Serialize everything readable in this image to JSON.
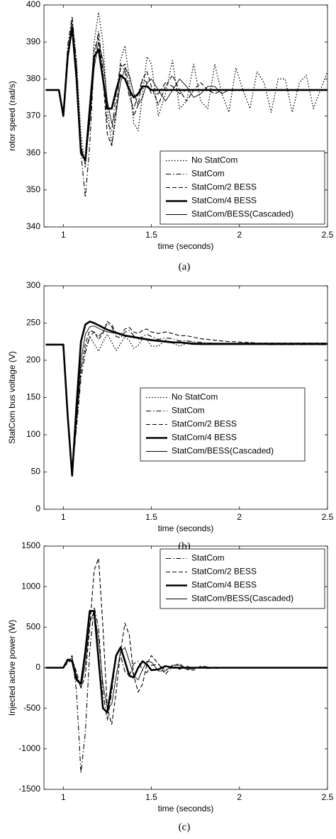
{
  "chart_data": [
    {
      "type": "line",
      "ylabel": "rotor speed (rad/s)",
      "xlabel": "time (seconds)",
      "caption": "(a)",
      "legend": "lower right",
      "xlim": [
        0.89,
        2.5
      ],
      "xticks": [
        1,
        1.5,
        2,
        2.5
      ],
      "ylim": [
        340,
        400
      ],
      "yticks": [
        340,
        350,
        360,
        370,
        380,
        390,
        400
      ],
      "x": [
        0.9,
        0.925,
        0.95,
        0.975,
        1,
        1.025,
        1.05,
        1.075,
        1.1,
        1.125,
        1.15,
        1.175,
        1.2,
        1.225,
        1.25,
        1.275,
        1.3,
        1.325,
        1.35,
        1.375,
        1.4,
        1.425,
        1.45,
        1.475,
        1.5,
        1.54,
        1.58,
        1.62,
        1.66,
        1.7,
        1.74,
        1.78,
        1.82,
        1.86,
        1.9,
        1.94,
        1.98,
        2.02,
        2.06,
        2.1,
        2.14,
        2.18,
        2.22,
        2.26,
        2.3,
        2.34,
        2.38,
        2.42,
        2.46,
        2.5
      ],
      "series": [
        {
          "name": "No StatCom",
          "color": "#000000",
          "dash": "dotted",
          "width": 1.3,
          "values": [
            377,
            377,
            377,
            377,
            371,
            388,
            396,
            385,
            365,
            356,
            370,
            390,
            398,
            390,
            372,
            362,
            370,
            385,
            389,
            380,
            368,
            366,
            376,
            386,
            384,
            370,
            376,
            385,
            372,
            374,
            384,
            374,
            372,
            384,
            376,
            371,
            383,
            377,
            372,
            382,
            379,
            371,
            380,
            380,
            371,
            379,
            381,
            372,
            377,
            382
          ]
        },
        {
          "name": "StatCom",
          "color": "#000000",
          "dash": "dashdot",
          "width": 1.1,
          "values": [
            377,
            377,
            377,
            377,
            371,
            389,
            397,
            384,
            360,
            348,
            362,
            385,
            393,
            382,
            368,
            366,
            376,
            384,
            382,
            375,
            372,
            376,
            380,
            379,
            376,
            376,
            379,
            378,
            376,
            377,
            377,
            377,
            377,
            377,
            377,
            377,
            377,
            377,
            377,
            377,
            377,
            377,
            377,
            377,
            377,
            377,
            377,
            377,
            377,
            377
          ]
        },
        {
          "name": "StatCom/2 BESS",
          "color": "#000000",
          "dash": "dashed",
          "width": 1.1,
          "values": [
            377,
            377,
            377,
            377,
            371,
            386,
            393,
            383,
            362,
            357,
            372,
            388,
            391,
            380,
            365,
            362,
            372,
            383,
            384,
            377,
            370,
            373,
            380,
            382,
            378,
            373,
            378,
            381,
            377,
            374,
            377,
            379,
            377,
            376,
            377,
            377,
            377,
            377,
            377,
            377,
            377,
            377,
            377,
            377,
            377,
            377,
            377,
            377,
            377,
            377
          ]
        },
        {
          "name": "StatCom/4 BESS",
          "color": "#000000",
          "dash": "solid",
          "width": 2.6,
          "values": [
            377,
            377,
            377,
            377,
            370,
            386,
            394,
            380,
            360,
            358,
            372,
            386,
            388,
            380,
            372,
            372,
            377,
            381,
            380,
            377,
            375,
            376,
            378,
            378,
            377,
            377,
            377,
            377,
            377,
            377,
            377,
            377,
            377,
            377,
            377,
            377,
            377,
            377,
            377,
            377,
            377,
            377,
            377,
            377,
            377,
            377,
            377,
            377,
            377,
            377
          ]
        },
        {
          "name": "StatCom/BESS(Cascaded)",
          "color": "#000000",
          "dash": "solid",
          "width": 0.9,
          "values": [
            377,
            377,
            377,
            377,
            371,
            387,
            395,
            382,
            361,
            358,
            368,
            383,
            390,
            385,
            374,
            368,
            371,
            379,
            383,
            381,
            376,
            373,
            375,
            379,
            380,
            377,
            374,
            377,
            380,
            378,
            375,
            376,
            378,
            378,
            376,
            377,
            377,
            377,
            377,
            377,
            377,
            377,
            377,
            377,
            377,
            377,
            377,
            377,
            377,
            377
          ]
        }
      ]
    },
    {
      "type": "line",
      "ylabel": "StatCom bus voltage (V)",
      "xlabel": "time (seconds)",
      "caption": "(b)",
      "legend": "center right",
      "xlim": [
        0.89,
        2.5
      ],
      "xticks": [
        1,
        1.5,
        2,
        2.5
      ],
      "ylim": [
        0,
        300
      ],
      "yticks": [
        0,
        50,
        100,
        150,
        200,
        250,
        300
      ],
      "x": [
        0.9,
        0.925,
        0.95,
        0.975,
        1,
        1.025,
        1.05,
        1.075,
        1.1,
        1.125,
        1.15,
        1.175,
        1.2,
        1.225,
        1.25,
        1.275,
        1.3,
        1.325,
        1.35,
        1.375,
        1.4,
        1.425,
        1.45,
        1.475,
        1.5,
        1.54,
        1.58,
        1.62,
        1.66,
        1.7,
        1.74,
        1.78,
        1.82,
        1.86,
        1.9,
        1.94,
        1.98,
        2.02,
        2.06,
        2.1,
        2.14,
        2.18,
        2.22,
        2.26,
        2.3,
        2.34,
        2.38,
        2.42,
        2.46,
        2.5
      ],
      "series": [
        {
          "name": "No StatCom",
          "color": "#000000",
          "dash": "dotted",
          "width": 1.3,
          "values": [
            221,
            221,
            221,
            221,
            221,
            130,
            48,
            120,
            190,
            215,
            232,
            222,
            212,
            225,
            235,
            224,
            213,
            222,
            232,
            226,
            216,
            220,
            229,
            228,
            219,
            219,
            227,
            223,
            219,
            223,
            224,
            221,
            221,
            221,
            221,
            221,
            221,
            221,
            221,
            221,
            221,
            221,
            221,
            221,
            221,
            221,
            221,
            221,
            221,
            221
          ]
        },
        {
          "name": "StatCom",
          "color": "#000000",
          "dash": "dashdot",
          "width": 1.1,
          "values": [
            221,
            221,
            221,
            221,
            221,
            130,
            48,
            110,
            175,
            210,
            232,
            238,
            232,
            238,
            250,
            245,
            232,
            230,
            238,
            240,
            233,
            228,
            232,
            235,
            232,
            228,
            230,
            229,
            226,
            226,
            225,
            224,
            223,
            223,
            222,
            222,
            222,
            222,
            222,
            222,
            221,
            221,
            221,
            221,
            221,
            221,
            221,
            221,
            221,
            221
          ]
        },
        {
          "name": "StatCom/2 BESS",
          "color": "#000000",
          "dash": "dashed",
          "width": 1.1,
          "values": [
            221,
            221,
            221,
            221,
            221,
            128,
            47,
            115,
            185,
            222,
            240,
            238,
            228,
            236,
            252,
            248,
            236,
            234,
            242,
            244,
            238,
            236,
            240,
            242,
            238,
            236,
            238,
            236,
            233,
            233,
            231,
            229,
            228,
            227,
            226,
            225,
            225,
            224,
            224,
            223,
            223,
            223,
            223,
            223,
            223,
            223,
            223,
            223,
            223,
            223
          ]
        },
        {
          "name": "StatCom/4 BESS",
          "color": "#000000",
          "dash": "solid",
          "width": 2.6,
          "values": [
            221,
            221,
            221,
            221,
            221,
            125,
            45,
            140,
            225,
            248,
            252,
            250,
            247,
            244,
            241,
            239,
            237,
            235,
            233,
            232,
            231,
            230,
            229,
            228,
            227,
            226,
            225,
            224,
            224,
            223,
            222,
            222,
            222,
            222,
            222,
            222,
            222,
            222,
            222,
            222,
            222,
            222,
            222,
            222,
            222,
            222,
            222,
            222,
            222,
            222
          ]
        },
        {
          "name": "StatCom/BESS(Cascaded)",
          "color": "#000000",
          "dash": "solid",
          "width": 0.9,
          "values": [
            221,
            221,
            221,
            221,
            221,
            128,
            48,
            120,
            200,
            235,
            245,
            246,
            243,
            240,
            238,
            237,
            236,
            235,
            234,
            233,
            232,
            231,
            230,
            229,
            228,
            227,
            226,
            225,
            224,
            224,
            223,
            223,
            223,
            223,
            223,
            223,
            223,
            223,
            223,
            223,
            223,
            223,
            223,
            223,
            223,
            223,
            223,
            223,
            223,
            223
          ]
        }
      ]
    },
    {
      "type": "line",
      "ylabel": "Injected active power (W)",
      "xlabel": "time (seconds)",
      "caption": "(c)",
      "legend": "upper right",
      "xlim": [
        0.89,
        2.5
      ],
      "xticks": [
        1,
        1.5,
        2,
        2.5
      ],
      "ylim": [
        -1500,
        1500
      ],
      "yticks": [
        -1500,
        -1000,
        -500,
        0,
        500,
        1000,
        1500
      ],
      "x": [
        0.9,
        0.925,
        0.95,
        0.975,
        1,
        1.025,
        1.05,
        1.075,
        1.1,
        1.125,
        1.15,
        1.175,
        1.2,
        1.225,
        1.25,
        1.275,
        1.3,
        1.325,
        1.35,
        1.375,
        1.4,
        1.425,
        1.45,
        1.475,
        1.5,
        1.54,
        1.58,
        1.62,
        1.66,
        1.7,
        1.74,
        1.78,
        1.82,
        1.86,
        1.9,
        1.94,
        1.98,
        2.02,
        2.06,
        2.1,
        2.14,
        2.18,
        2.22,
        2.26,
        2.3,
        2.34,
        2.38,
        2.42,
        2.46,
        2.5
      ],
      "series": [
        {
          "name": "StatCom",
          "color": "#000000",
          "dash": "dashdot",
          "width": 1.1,
          "values": [
            0,
            0,
            0,
            0,
            0,
            80,
            150,
            -300,
            -1300,
            -800,
            200,
            750,
            500,
            -300,
            -650,
            -300,
            150,
            150,
            -50,
            -100,
            50,
            80,
            -30,
            -60,
            30,
            40,
            -30,
            30,
            -20,
            20,
            -10,
            10,
            -10,
            0,
            0,
            0,
            0,
            0,
            0,
            0,
            0,
            0,
            0,
            0,
            0,
            0,
            0,
            0,
            0,
            0
          ]
        },
        {
          "name": "StatCom/2 BESS",
          "color": "#000000",
          "dash": "dashed",
          "width": 1.1,
          "values": [
            0,
            0,
            0,
            0,
            0,
            60,
            100,
            -50,
            -250,
            -100,
            500,
            1200,
            1350,
            500,
            -500,
            -700,
            -300,
            200,
            550,
            400,
            -100,
            -300,
            -200,
            50,
            150,
            50,
            -80,
            20,
            50,
            -20,
            -30,
            20,
            10,
            -10,
            0,
            0,
            0,
            0,
            0,
            0,
            0,
            0,
            0,
            0,
            0,
            0,
            0,
            0,
            0,
            0
          ]
        },
        {
          "name": "StatCom/4 BESS",
          "color": "#000000",
          "dash": "solid",
          "width": 2.6,
          "values": [
            0,
            0,
            0,
            0,
            0,
            100,
            80,
            -150,
            -200,
            200,
            700,
            700,
            100,
            -500,
            -550,
            -200,
            150,
            250,
            80,
            -100,
            -120,
            0,
            80,
            40,
            -30,
            -20,
            20,
            0,
            0,
            0,
            0,
            0,
            0,
            0,
            0,
            0,
            0,
            0,
            0,
            0,
            0,
            0,
            0,
            0,
            0,
            0,
            0,
            0,
            0,
            0
          ]
        },
        {
          "name": "StatCom/BESS(Cascaded)",
          "color": "#000000",
          "dash": "solid",
          "width": 0.9,
          "values": [
            0,
            0,
            0,
            0,
            0,
            80,
            120,
            -100,
            -250,
            50,
            550,
            700,
            350,
            -200,
            -500,
            -450,
            -100,
            200,
            250,
            80,
            -100,
            -150,
            -20,
            80,
            70,
            -40,
            -40,
            30,
            30,
            -20,
            -10,
            10,
            0,
            0,
            0,
            0,
            0,
            0,
            0,
            0,
            0,
            0,
            0,
            0,
            0,
            0,
            0,
            0,
            0,
            0
          ]
        }
      ]
    }
  ]
}
